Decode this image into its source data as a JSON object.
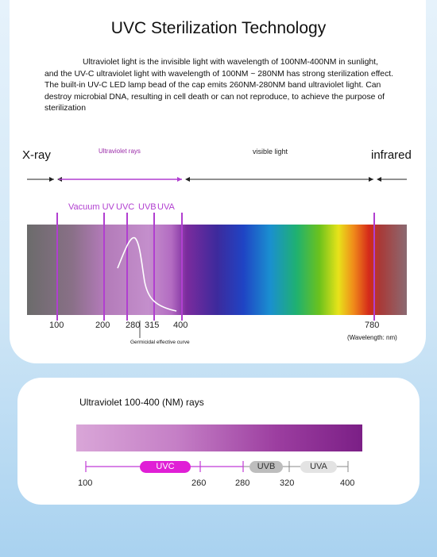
{
  "title": "UVC Sterilization Technology",
  "description": "Ultraviolet light is the invisible light with wavelength of 100NM-400NM in sunlight, and the UV-C ultraviolet light with wavelength of 100NM ~ 280NM has strong sterilization effect. The built-in UV-C LED lamp bead of the cap emits 260NM-280NM band ultraviolet light. Can destroy microbial DNA, resulting in cell death or can not reproduce, to achieve the purpose of sterilization",
  "spectrum": {
    "labels": {
      "xray": "X-ray",
      "uv": "Ultraviolet rays",
      "visible": "visible light",
      "infrared": "infrared"
    },
    "bands": [
      "Vacuum UV",
      "UVC",
      "UVB",
      "UVA"
    ],
    "ticks": [
      "100",
      "200",
      "280",
      "315",
      "400",
      "780"
    ],
    "unit": "(Wavelength: nm)",
    "curve_label": "Germicidal effective curve",
    "colors": {
      "marker": "#b13fd0"
    }
  },
  "uv_scale": {
    "title": "Ultraviolet 100-400 (NM) rays",
    "pills": [
      "UVC",
      "UVB",
      "UVA"
    ],
    "ticks": [
      "100",
      "260",
      "280",
      "320",
      "400"
    ],
    "colors": {
      "uvc": "#e01fd6",
      "uvb": "#bdbdbd",
      "uva": "#e3e3e3"
    }
  }
}
